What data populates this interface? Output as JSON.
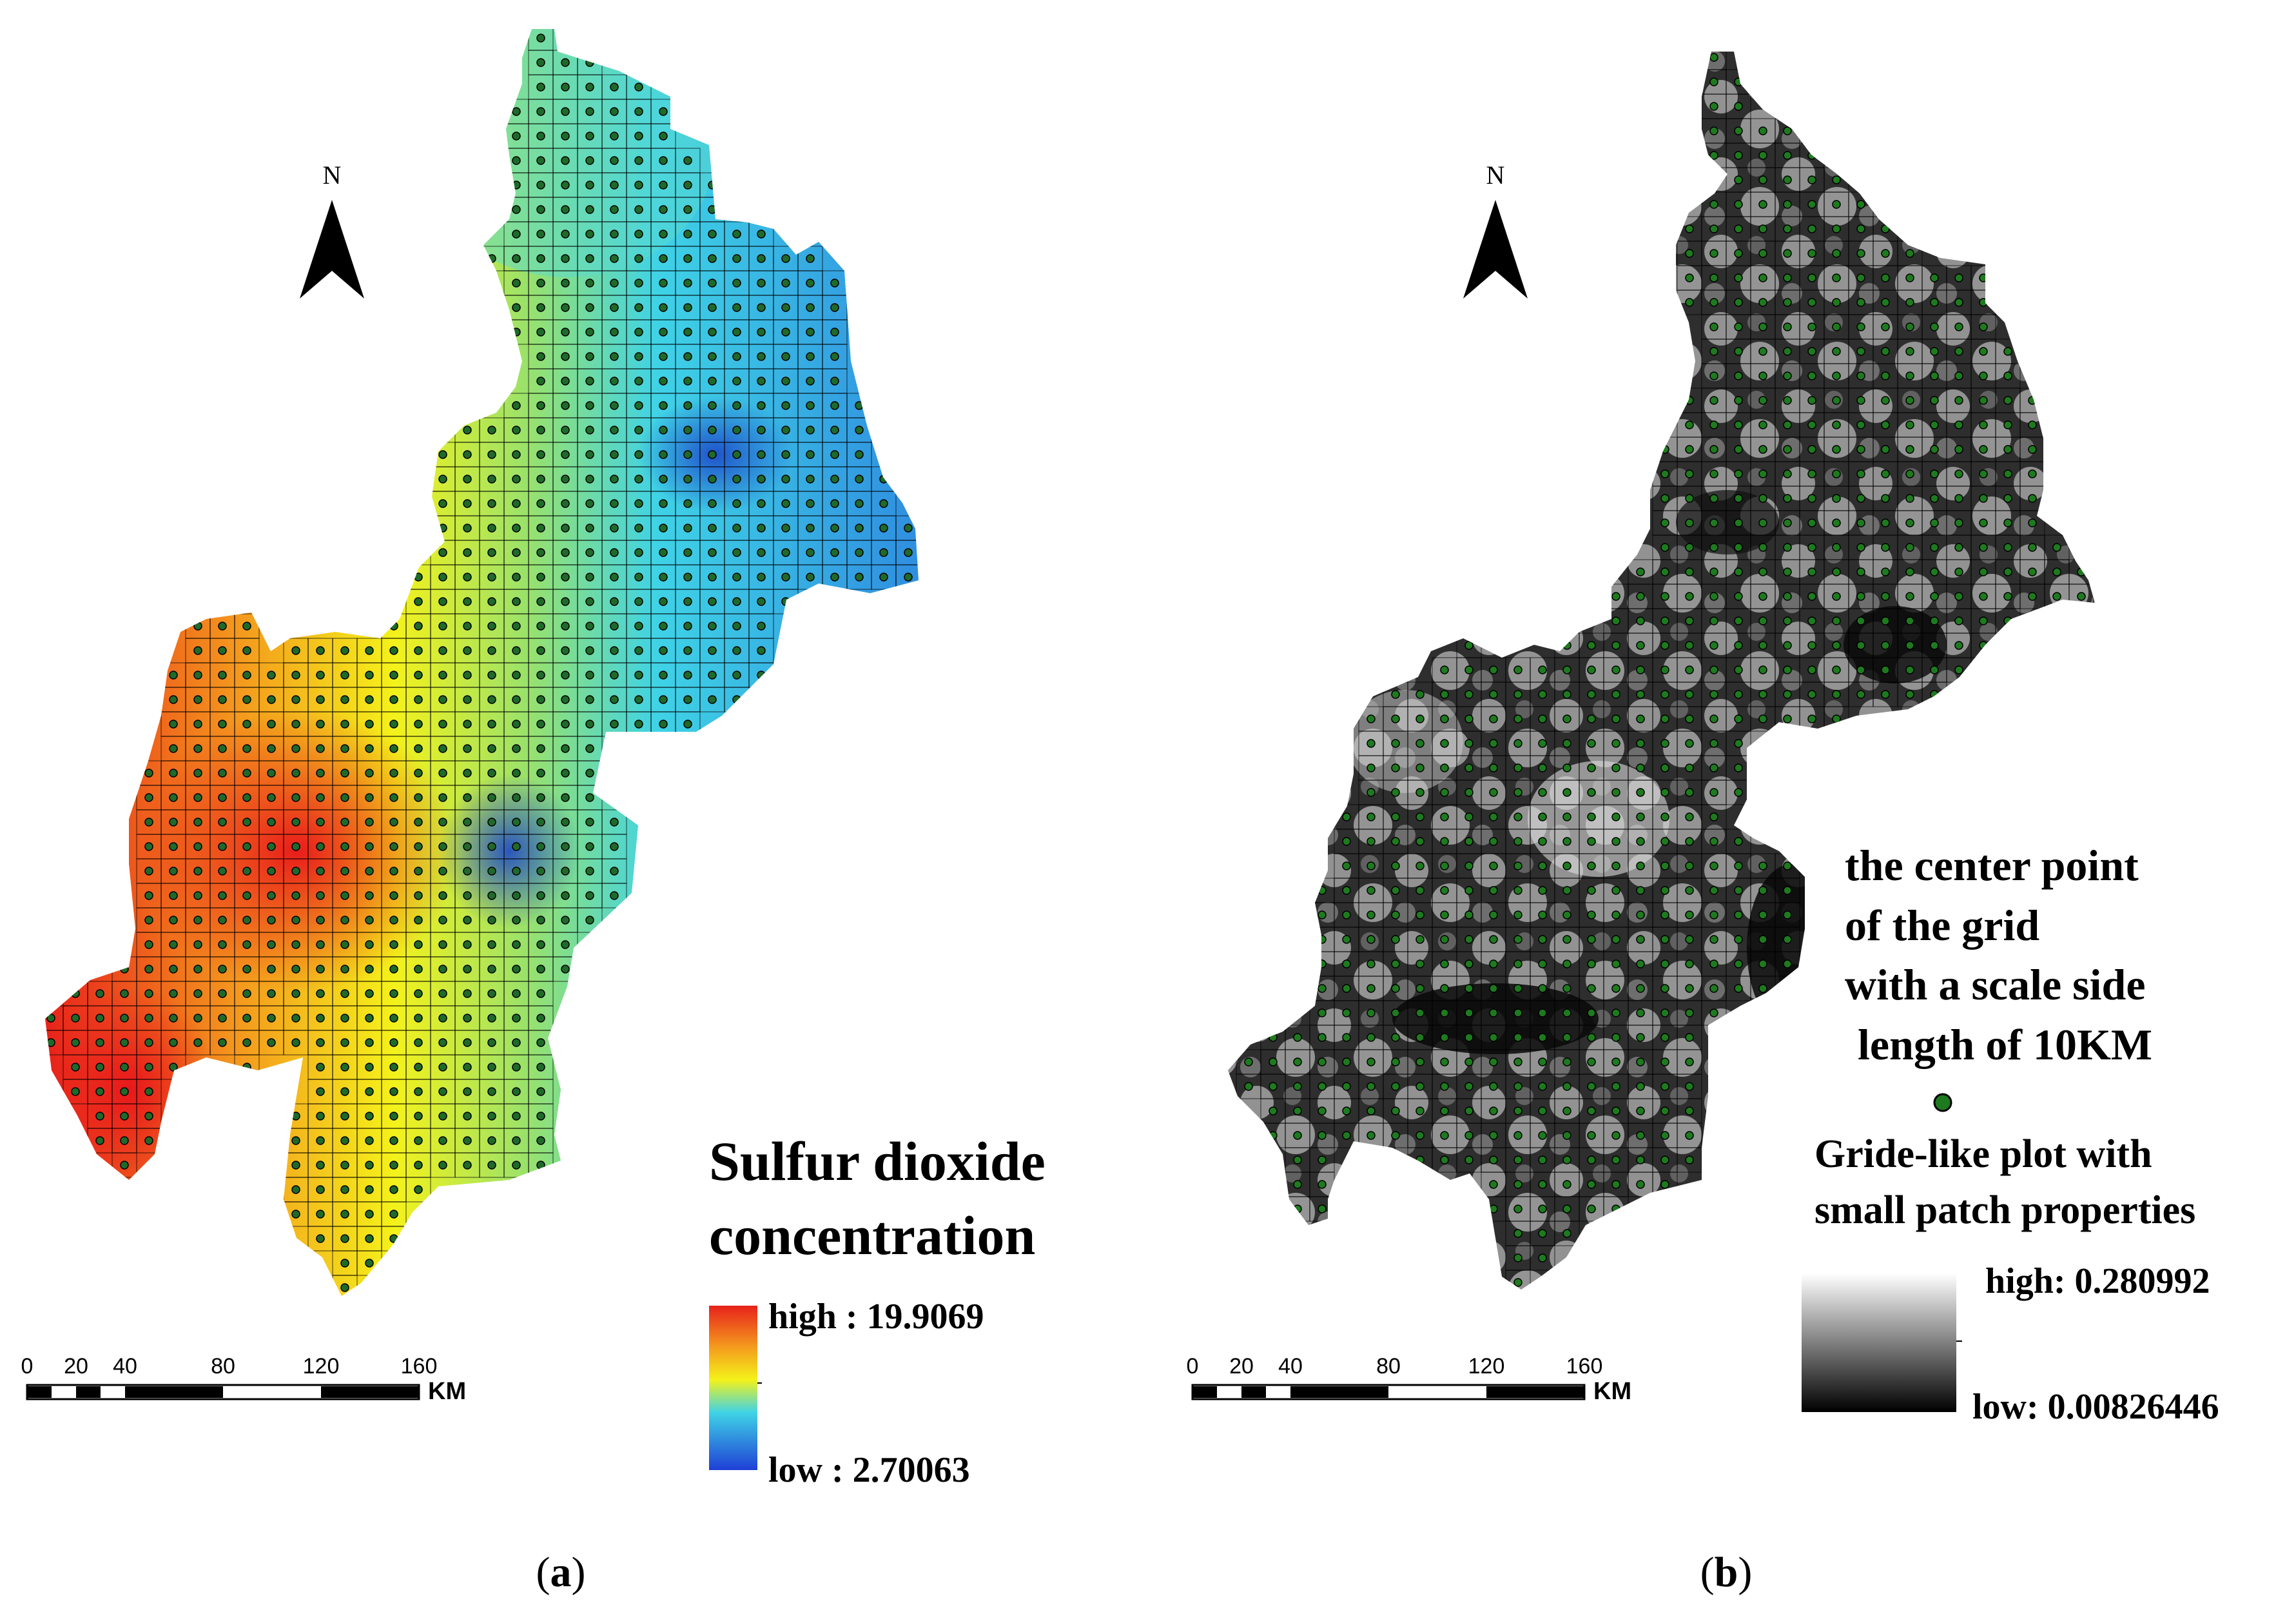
{
  "panel_a": {
    "north_label": "N",
    "legend_title_line1": "Sulfur dioxide",
    "legend_title_line2": "concentration",
    "legend_high": "high : 19.9069",
    "legend_low": "low : 2.70063",
    "scale_ticks": [
      "0",
      "20",
      "40",
      "80",
      "120",
      "160"
    ],
    "scale_unit": "KM",
    "caption_open": "(",
    "caption_letter": "a",
    "caption_close": ")",
    "colors": {
      "high": "#e8221b",
      "mid": "#f4f21a",
      "cyan": "#3fd3e6",
      "low": "#2a57d6"
    }
  },
  "panel_b": {
    "north_label": "N",
    "note_line1": "the center point",
    "note_line2": "of the grid",
    "note_line3": "with a scale side",
    "note_line4": "length of 10KM",
    "plot_label_line1": "Gride-like plot with",
    "plot_label_line2": "small patch properties",
    "legend_high": "high: 0.280992",
    "legend_low": "low: 0.00826446",
    "scale_ticks": [
      "0",
      "20",
      "40",
      "80",
      "120",
      "160"
    ],
    "scale_unit": "KM",
    "caption_open": "(",
    "caption_letter": "b",
    "caption_close": ")",
    "colors": {
      "point": "#1e7a1e",
      "high": "#ffffff",
      "low": "#000000"
    }
  }
}
